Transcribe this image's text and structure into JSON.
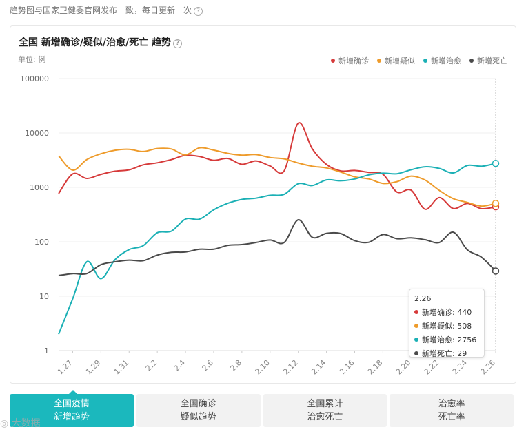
{
  "header": {
    "note": "趋势图与国家卫健委官网发布一致，每日更新一次",
    "help_glyph": "?"
  },
  "card": {
    "title": "全国 新增确诊/疑似/治愈/死亡 趋势",
    "help_glyph": "?",
    "unit": "单位: 例"
  },
  "legend": [
    {
      "label": "新增确诊",
      "color": "#d63a3a"
    },
    {
      "label": "新增疑似",
      "color": "#ee9b2b"
    },
    {
      "label": "新增治愈",
      "color": "#1bb0b5"
    },
    {
      "label": "新增死亡",
      "color": "#4a4a4a"
    }
  ],
  "chart_data": {
    "type": "line",
    "title": "全国 新增确诊/疑似/治愈/死亡 趋势",
    "ylabel": "单位: 例",
    "yscale": "log",
    "ylim": [
      1,
      100000
    ],
    "yticks": [
      "100000",
      "10000",
      "1000",
      "100",
      "10",
      "1"
    ],
    "grid": true,
    "legend_position": "top-right",
    "x": [
      "1.26",
      "1.27",
      "1.28",
      "1.29",
      "1.30",
      "1.31",
      "2.1",
      "2.2",
      "2.3",
      "2.4",
      "2.5",
      "2.6",
      "2.7",
      "2.8",
      "2.9",
      "2.10",
      "2.11",
      "2.12",
      "2.13",
      "2.14",
      "2.15",
      "2.16",
      "2.17",
      "2.18",
      "2.19",
      "2.20",
      "2.21",
      "2.22",
      "2.23",
      "2.24",
      "2.25",
      "2.26"
    ],
    "xtick_labels": [
      "1.27",
      "1.29",
      "1.31",
      "2.2",
      "2.4",
      "2.6",
      "2.8",
      "2.10",
      "2.12",
      "2.14",
      "2.16",
      "2.18",
      "2.20",
      "2.22",
      "2.24",
      "2.26"
    ],
    "series": [
      {
        "name": "新增确诊",
        "color": "#d63a3a",
        "values": [
          769,
          1771,
          1459,
          1737,
          1982,
          2102,
          2590,
          2829,
          3235,
          3887,
          3694,
          3143,
          3399,
          2656,
          3062,
          2478,
          2015,
          15152,
          5090,
          2641,
          2009,
          2048,
          1886,
          1749,
          820,
          889,
          397,
          648,
          409,
          508,
          406,
          440
        ]
      },
      {
        "name": "新增疑似",
        "color": "#ee9b2b",
        "values": [
          3806,
          2077,
          3248,
          4148,
          4812,
          5019,
          4562,
          5173,
          5072,
          3971,
          5328,
          4833,
          4214,
          3916,
          4008,
          3536,
          3342,
          2807,
          2450,
          2277,
          1918,
          1563,
          1432,
          1185,
          1277,
          1614,
          1361,
          882,
          620,
          530,
          452,
          508
        ]
      },
      {
        "name": "新增治愈",
        "color": "#1bb0b5",
        "values": [
          2,
          9,
          43,
          21,
          47,
          72,
          85,
          147,
          157,
          262,
          261,
          387,
          510,
          600,
          632,
          716,
          744,
          1171,
          1081,
          1373,
          1323,
          1425,
          1701,
          1824,
          1779,
          2109,
          2393,
          2231,
          1846,
          2535,
          2443,
          2756
        ]
      },
      {
        "name": "新增死亡",
        "color": "#4a4a4a",
        "values": [
          24,
          26,
          26,
          38,
          43,
          46,
          45,
          57,
          64,
          65,
          73,
          73,
          86,
          89,
          97,
          108,
          97,
          254,
          121,
          143,
          142,
          105,
          98,
          136,
          114,
          118,
          109,
          97,
          150,
          71,
          52,
          29
        ]
      }
    ]
  },
  "tooltip": {
    "date": "2.26",
    "rows": [
      {
        "label": "新增确诊: 440",
        "color": "#d63a3a"
      },
      {
        "label": "新增疑似: 508",
        "color": "#ee9b2b"
      },
      {
        "label": "新增治愈: 2756",
        "color": "#1bb0b5"
      },
      {
        "label": "新增死亡: 29",
        "color": "#4a4a4a"
      }
    ]
  },
  "tabs": [
    {
      "line1": "全国疫情",
      "line2": "新增趋势",
      "active": true
    },
    {
      "line1": "全国确诊",
      "line2": "疑似趋势",
      "active": false
    },
    {
      "line1": "全国累计",
      "line2": "治愈死亡",
      "active": false
    },
    {
      "line1": "治愈率",
      "line2": "死亡率",
      "active": false
    }
  ],
  "watermark": "大数据"
}
